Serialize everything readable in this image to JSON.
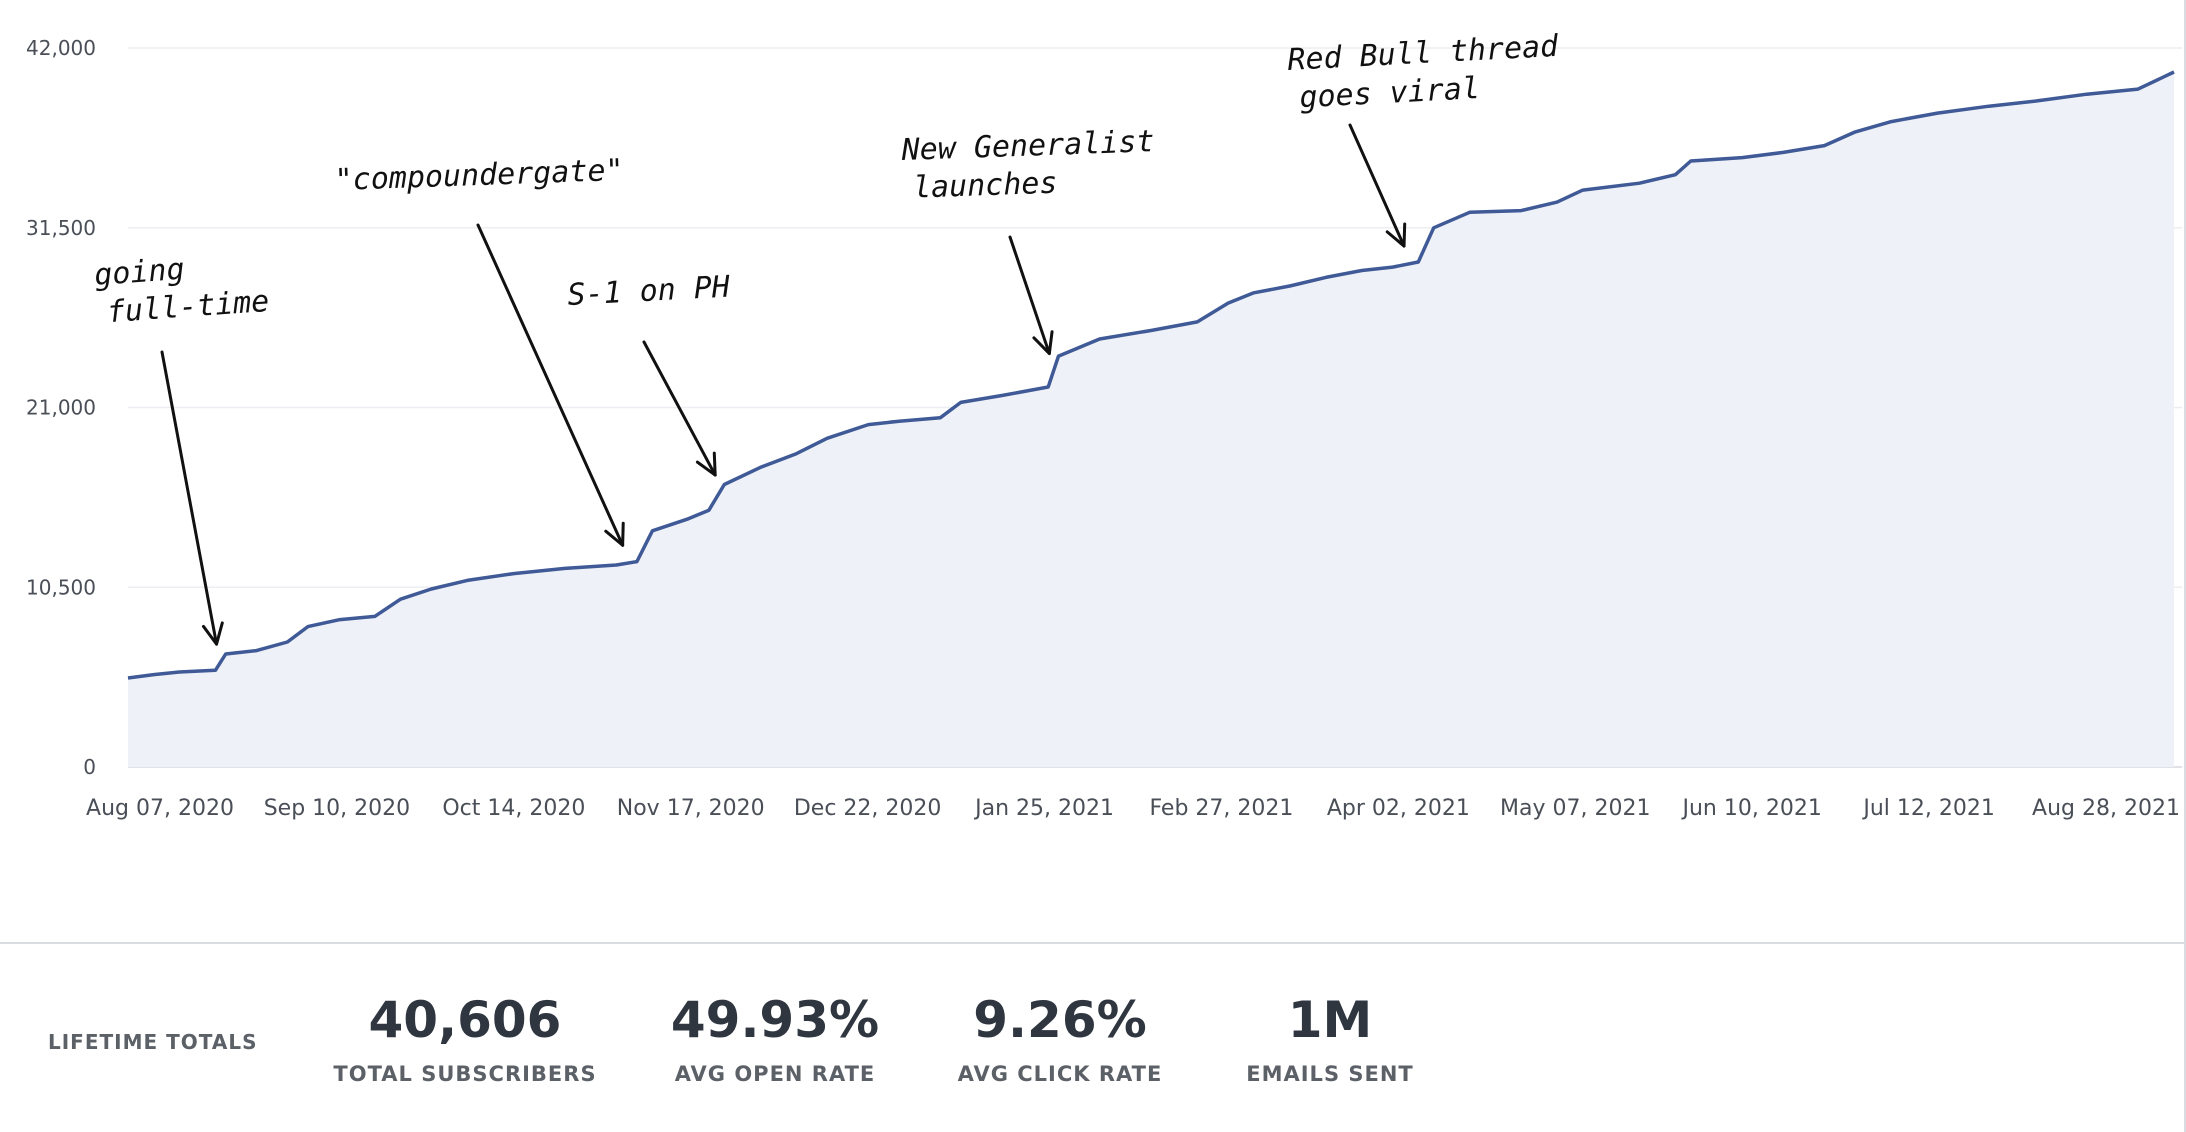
{
  "chart_data": {
    "type": "area",
    "title": "",
    "xlabel": "",
    "ylabel": "",
    "y_ticks": [
      "0",
      "10,500",
      "21,000",
      "31,500",
      "42,000"
    ],
    "ylim": [
      0,
      42000
    ],
    "x_ticks": [
      "Aug 07, 2020",
      "Sep 10, 2020",
      "Oct 14, 2020",
      "Nov 17, 2020",
      "Dec 22, 2020",
      "Jan 25, 2021",
      "Feb 27, 2021",
      "Apr 02, 2021",
      "May 07, 2021",
      "Jun 10, 2021",
      "Jul 12, 2021",
      "Aug 28, 2021"
    ],
    "xlim": [
      "2020-07-31",
      "2021-09-02"
    ],
    "grid": true,
    "series": [
      {
        "color": "#3f5a96",
        "fill": "#eef1f7",
        "points": [
          [
            "2020-07-31",
            5200
          ],
          [
            "2020-08-05",
            5400
          ],
          [
            "2020-08-10",
            5550
          ],
          [
            "2020-08-17",
            5650
          ],
          [
            "2020-08-19",
            6600
          ],
          [
            "2020-08-25",
            6800
          ],
          [
            "2020-08-31",
            7300
          ],
          [
            "2020-09-04",
            8200
          ],
          [
            "2020-09-10",
            8600
          ],
          [
            "2020-09-17",
            8800
          ],
          [
            "2020-09-22",
            9800
          ],
          [
            "2020-09-28",
            10400
          ],
          [
            "2020-10-05",
            10900
          ],
          [
            "2020-10-14",
            11300
          ],
          [
            "2020-10-24",
            11600
          ],
          [
            "2020-11-03",
            11800
          ],
          [
            "2020-11-07",
            12000
          ],
          [
            "2020-11-10",
            13800
          ],
          [
            "2020-11-17",
            14500
          ],
          [
            "2020-11-21",
            15000
          ],
          [
            "2020-11-24",
            16500
          ],
          [
            "2020-12-01",
            17500
          ],
          [
            "2020-12-08",
            18300
          ],
          [
            "2020-12-14",
            19200
          ],
          [
            "2020-12-22",
            20000
          ],
          [
            "2020-12-28",
            20200
          ],
          [
            "2021-01-05",
            20400
          ],
          [
            "2021-01-09",
            21300
          ],
          [
            "2021-01-17",
            21700
          ],
          [
            "2021-01-26",
            22200
          ],
          [
            "2021-01-28",
            24000
          ],
          [
            "2021-02-05",
            25000
          ],
          [
            "2021-02-15",
            25500
          ],
          [
            "2021-02-24",
            26000
          ],
          [
            "2021-03-02",
            27100
          ],
          [
            "2021-03-07",
            27700
          ],
          [
            "2021-03-14",
            28100
          ],
          [
            "2021-03-21",
            28600
          ],
          [
            "2021-03-28",
            29000
          ],
          [
            "2021-04-03",
            29200
          ],
          [
            "2021-04-08",
            29500
          ],
          [
            "2021-04-11",
            31500
          ],
          [
            "2021-04-18",
            32400
          ],
          [
            "2021-04-28",
            32500
          ],
          [
            "2021-05-05",
            33000
          ],
          [
            "2021-05-10",
            33700
          ],
          [
            "2021-05-21",
            34100
          ],
          [
            "2021-05-28",
            34600
          ],
          [
            "2021-05-31",
            35400
          ],
          [
            "2021-06-10",
            35600
          ],
          [
            "2021-06-18",
            35900
          ],
          [
            "2021-06-26",
            36300
          ],
          [
            "2021-07-02",
            37100
          ],
          [
            "2021-07-09",
            37700
          ],
          [
            "2021-07-18",
            38200
          ],
          [
            "2021-07-28",
            38600
          ],
          [
            "2021-08-06",
            38900
          ],
          [
            "2021-08-16",
            39300
          ],
          [
            "2021-08-26",
            39600
          ],
          [
            "2021-09-02",
            40600
          ]
        ]
      }
    ],
    "annotations": [
      {
        "lines": [
          "going",
          "full-time"
        ],
        "date": "2020-08-18"
      },
      {
        "lines": [
          "\"compoundergate\""
        ],
        "date": "2020-11-05"
      },
      {
        "lines": [
          "S-1 on PH"
        ],
        "date": "2020-11-23"
      },
      {
        "lines": [
          "New Generalist",
          "launches"
        ],
        "date": "2021-01-27"
      },
      {
        "lines": [
          "Red Bull thread",
          "goes viral"
        ],
        "date": "2021-04-06"
      }
    ]
  },
  "totals": {
    "label": "LIFETIME TOTALS",
    "stats": [
      {
        "value": "40,606",
        "label": "TOTAL SUBSCRIBERS"
      },
      {
        "value": "49.93%",
        "label": "AVG OPEN RATE"
      },
      {
        "value": "9.26%",
        "label": "AVG CLICK RATE"
      },
      {
        "value": "1M",
        "label": "EMAILS SENT"
      }
    ]
  }
}
